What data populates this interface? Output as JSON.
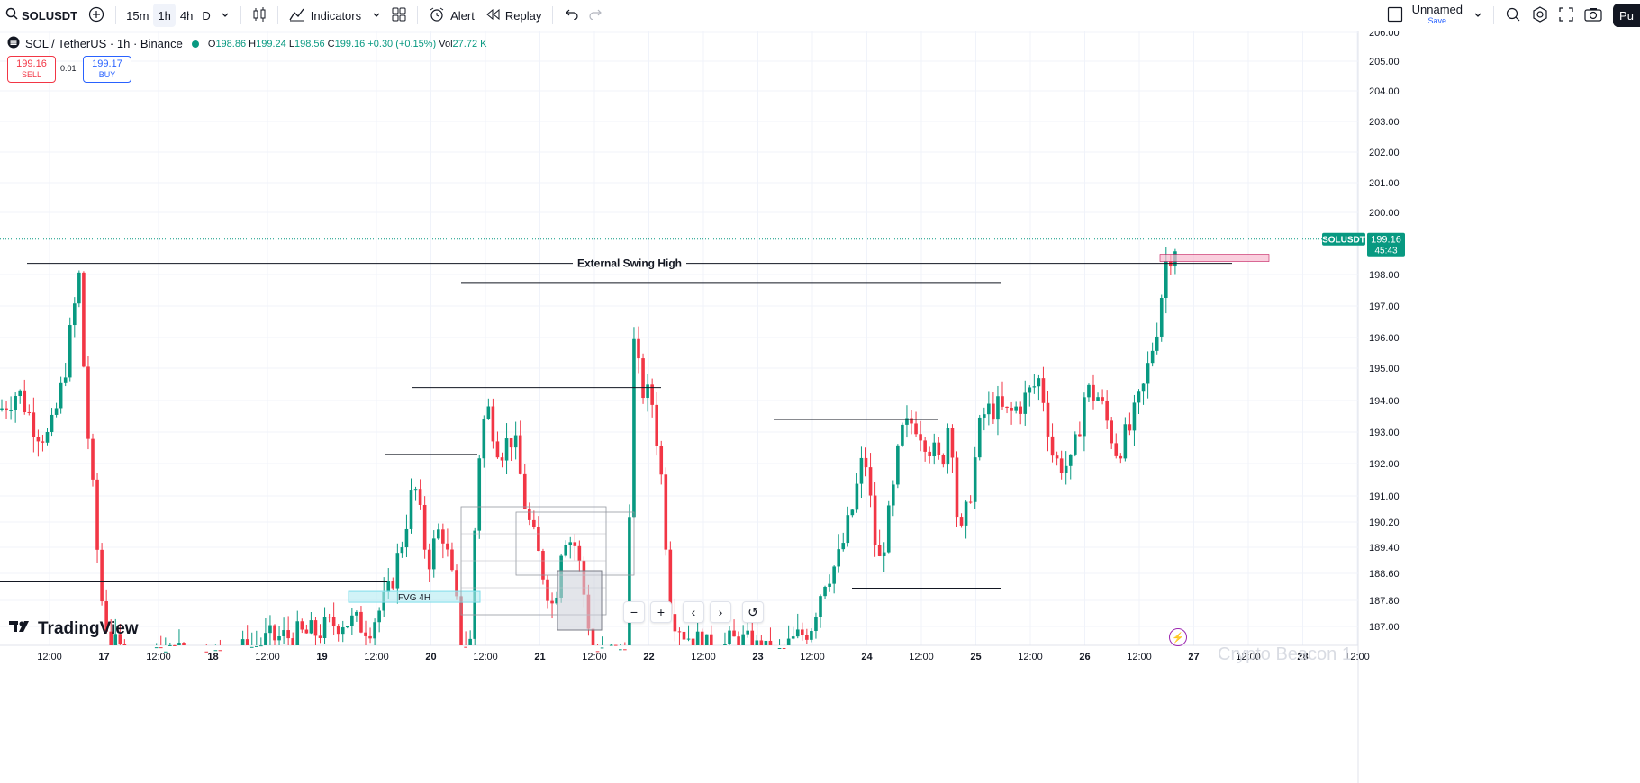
{
  "toolbar": {
    "symbol": "SOLUSDT",
    "timeframes": [
      "15m",
      "1h",
      "4h",
      "D"
    ],
    "active_timeframe": "1h",
    "indicators_label": "Indicators",
    "alert_label": "Alert",
    "replay_label": "Replay",
    "layout_name": "Unnamed",
    "save_label": "Save",
    "publish_label": "Pu"
  },
  "legend": {
    "title": "SOL / TetherUS · 1h · Binance",
    "o_label": "O",
    "o": "198.86",
    "h_label": "H",
    "h": "199.24",
    "l_label": "L",
    "l": "198.56",
    "c_label": "C",
    "c": "199.16",
    "change": "+0.30 (+0.15%)",
    "vol_label": "Vol",
    "vol": "27.72 K"
  },
  "trade": {
    "sell_price": "199.16",
    "sell_label": "SELL",
    "spread": "0.01",
    "buy_price": "199.17",
    "buy_label": "BUY"
  },
  "logo_text": "TradingView",
  "watermark": "Crypto Beacon 1",
  "colors": {
    "up": "#089981",
    "down": "#f23645",
    "grid": "#f0f3fa",
    "accent": "#2962ff",
    "price_line": "#089981",
    "fvg_fill": "#b2ebf2",
    "zone_fill": "#f8bbd0"
  },
  "chart_data": {
    "type": "candlestick",
    "symbol": "SOLUSDT",
    "current_price": 199.16,
    "price_label": "199.16",
    "countdown": "45:43",
    "price_axis_labels": [
      "206.00",
      "205.00",
      "204.00",
      "203.00",
      "202.00",
      "201.00",
      "200.00",
      "198.00",
      "197.00",
      "196.00",
      "195.00",
      "194.00",
      "193.00",
      "192.00",
      "191.00",
      "190.20",
      "189.40",
      "188.60",
      "187.80",
      "187.00"
    ],
    "time_axis_labels": [
      "12:00",
      "17",
      "12:00",
      "18",
      "12:00",
      "19",
      "12:00",
      "20",
      "12:00",
      "21",
      "12:00",
      "22",
      "12:00",
      "23",
      "12:00",
      "24",
      "12:00",
      "25",
      "12:00",
      "26",
      "12:00",
      "27",
      "12:00",
      "28",
      "12:00"
    ],
    "annotations": [
      {
        "type": "horizontal_line",
        "label": "External Swing High",
        "price": 198.4
      },
      {
        "type": "horizontal_line",
        "price": 197.8
      },
      {
        "type": "horizontal_line",
        "price": 194.5
      },
      {
        "type": "horizontal_line",
        "price": 193.5
      },
      {
        "type": "horizontal_line",
        "price": 192.4
      },
      {
        "type": "horizontal_line",
        "price": 188.4
      },
      {
        "type": "horizontal_line",
        "price": 188.2
      },
      {
        "type": "zone",
        "label": "FVG 4H",
        "price_top": 188.1,
        "price_bottom": 187.9
      },
      {
        "type": "zone",
        "price_top": 198.6,
        "price_bottom": 198.4
      }
    ]
  }
}
